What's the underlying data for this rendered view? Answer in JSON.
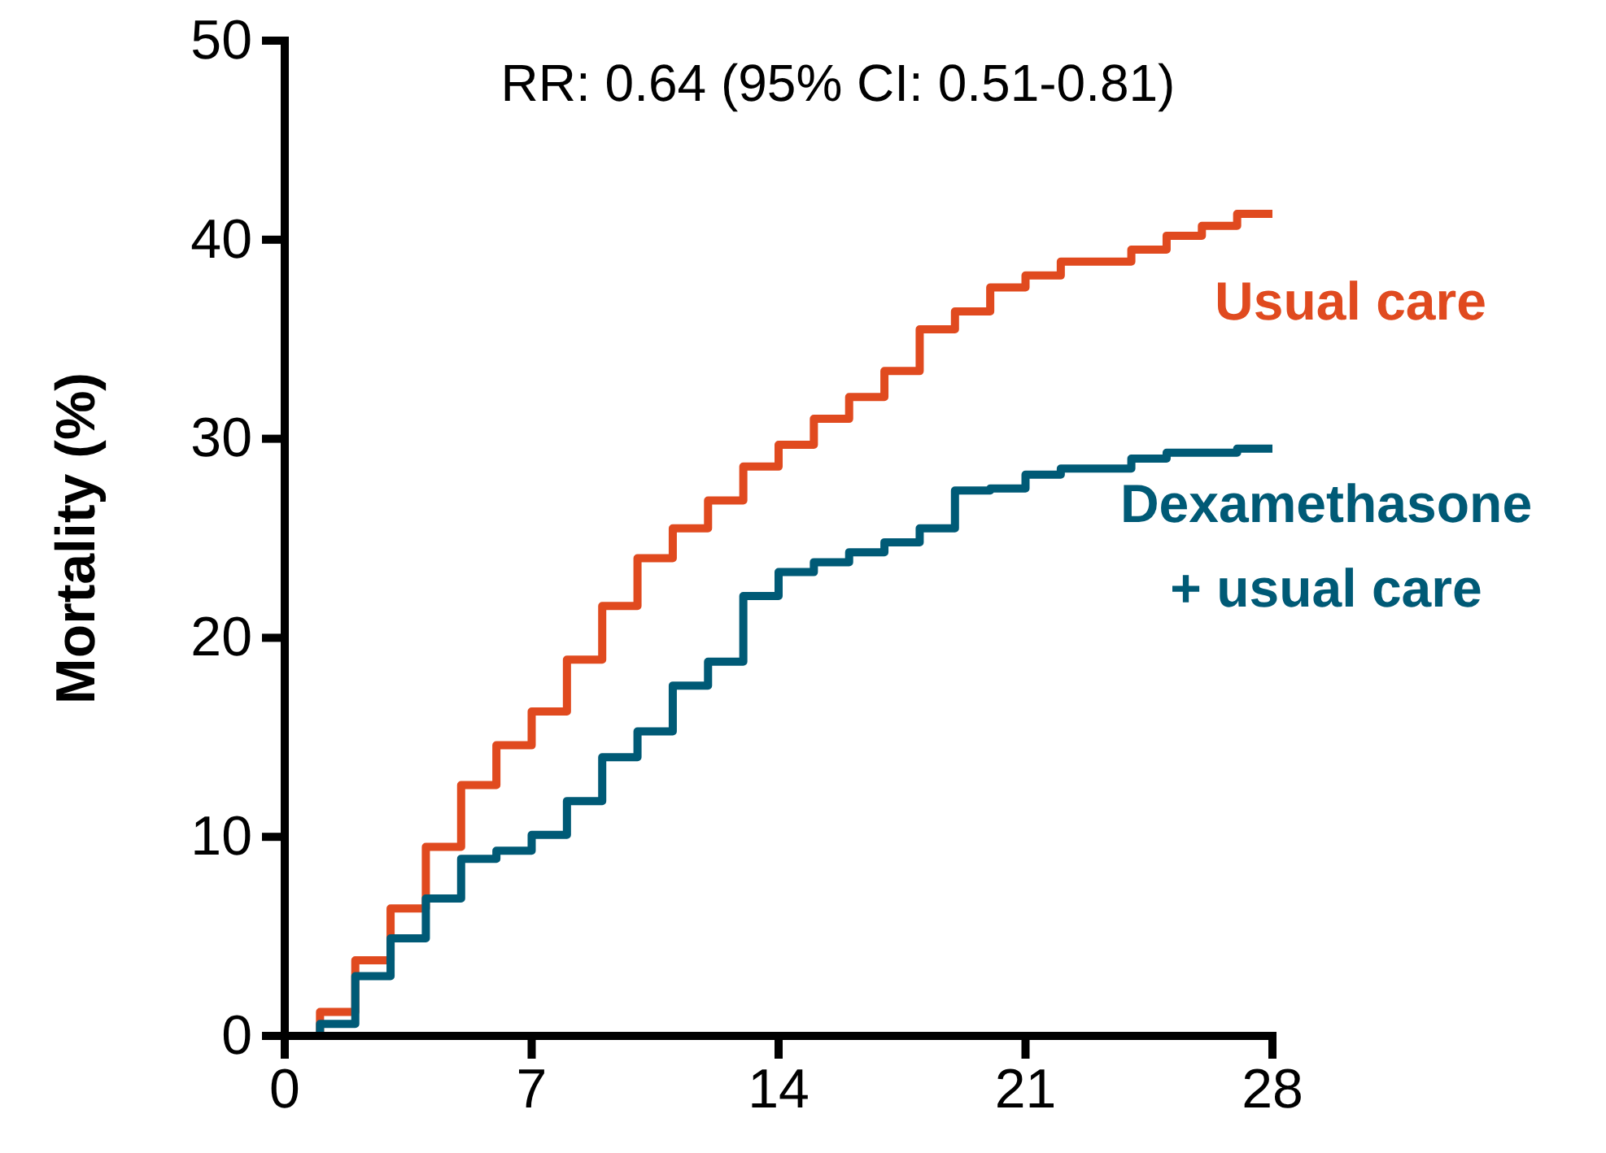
{
  "chart_data": {
    "type": "step",
    "ylabel": "Mortality (%)",
    "annotations": [
      "RR: 0.64 (95% CI: 0.51-0.81)"
    ],
    "xlim": [
      0,
      28
    ],
    "xticks": [
      0,
      7,
      14,
      21,
      28
    ],
    "ylim": [
      0,
      50
    ],
    "yticks": [
      0,
      10,
      20,
      30,
      40,
      50
    ],
    "grid": false,
    "legend": false,
    "marker": "none",
    "line_style": "solid",
    "series": [
      {
        "name": "Usual care",
        "color": "#e04a1f",
        "x": [
          0,
          1,
          2,
          3,
          4,
          5,
          6,
          7,
          8,
          9,
          10,
          11,
          12,
          13,
          14,
          15,
          16,
          17,
          18,
          19,
          20,
          21,
          22,
          24,
          25,
          26,
          27,
          28
        ],
        "values": [
          0,
          1.2,
          3.8,
          6.4,
          9.5,
          12.6,
          14.6,
          16.3,
          18.9,
          21.6,
          24.0,
          25.5,
          26.9,
          28.6,
          29.7,
          31.0,
          32.1,
          33.4,
          35.5,
          36.4,
          37.6,
          38.2,
          38.9,
          39.5,
          40.2,
          40.7,
          41.3,
          41.3
        ]
      },
      {
        "name": "Dexamethasone + usual care",
        "color": "#005a76",
        "x": [
          0,
          1,
          2,
          3,
          4,
          5,
          6,
          7,
          8,
          9,
          10,
          11,
          12,
          13,
          14,
          15,
          16,
          17,
          18,
          19,
          20,
          21,
          22,
          24,
          25,
          27,
          28
        ],
        "values": [
          0,
          0.6,
          3.0,
          4.9,
          6.9,
          8.9,
          9.3,
          10.1,
          11.8,
          14.0,
          15.3,
          17.6,
          18.8,
          22.1,
          23.3,
          23.8,
          24.3,
          24.8,
          25.5,
          27.4,
          27.5,
          28.2,
          28.5,
          29.0,
          29.3,
          29.5,
          29.5
        ]
      }
    ]
  }
}
